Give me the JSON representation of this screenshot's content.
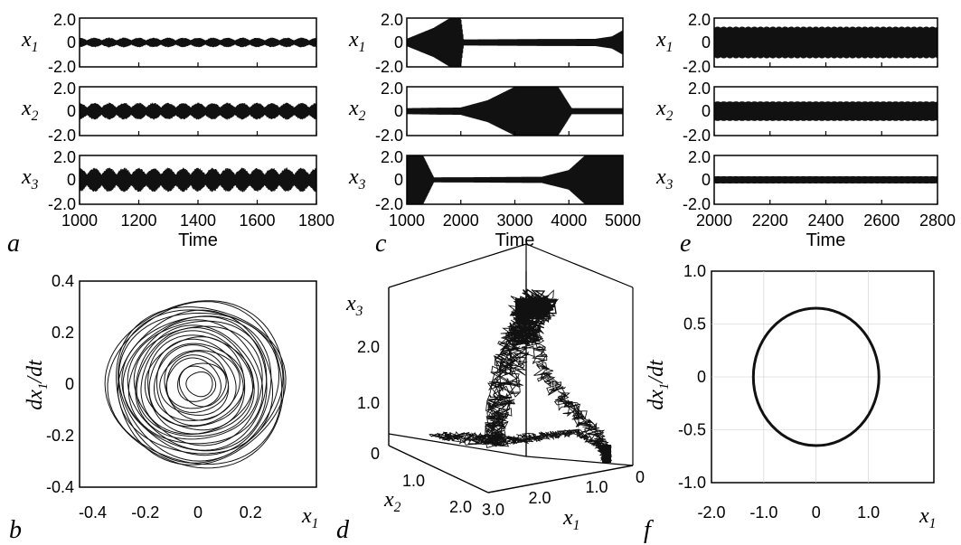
{
  "colors": {
    "ink": "#111111",
    "background": "#ffffff"
  },
  "panels": [
    {
      "letter": "a",
      "type": "line",
      "xlabel": "Time",
      "xticks": [
        "1000",
        "1200",
        "1400",
        "1600",
        "1800"
      ],
      "xlim": [
        1000,
        1800
      ],
      "yticks": [
        "2.0",
        "0",
        "-2.0"
      ],
      "ylim": [
        -2.0,
        2.0
      ],
      "series": [
        {
          "var": "x",
          "sub": "1",
          "pattern": "beating",
          "amplitude": 0.4,
          "beat_period": 50
        },
        {
          "var": "x",
          "sub": "2",
          "pattern": "beating",
          "amplitude": 0.7,
          "beat_period": 50
        },
        {
          "var": "x",
          "sub": "3",
          "pattern": "beating",
          "amplitude": 1.0,
          "beat_period": 50
        }
      ]
    },
    {
      "letter": "c",
      "type": "line",
      "xlabel": "Time",
      "xticks": [
        "1000",
        "2000",
        "3000",
        "4000",
        "5000"
      ],
      "xlim": [
        1000,
        5000
      ],
      "yticks": [
        "2.0",
        "0",
        "-2.0"
      ],
      "ylim": [
        -2.0,
        2.0
      ],
      "series": [
        {
          "var": "x",
          "sub": "1",
          "pattern": "bursting",
          "envelope": [
            [
              1000,
              0.3
            ],
            [
              1500,
              1.2
            ],
            [
              1800,
              2.0
            ],
            [
              2000,
              2.0
            ],
            [
              2050,
              0.25
            ],
            [
              4500,
              0.3
            ],
            [
              4800,
              0.5
            ],
            [
              5000,
              1.0
            ]
          ]
        },
        {
          "var": "x",
          "sub": "2",
          "pattern": "bursting",
          "envelope": [
            [
              1000,
              0.25
            ],
            [
              2000,
              0.3
            ],
            [
              2500,
              0.9
            ],
            [
              3000,
              2.0
            ],
            [
              3800,
              2.0
            ],
            [
              4050,
              0.25
            ],
            [
              5000,
              0.25
            ]
          ]
        },
        {
          "var": "x",
          "sub": "3",
          "pattern": "bursting",
          "envelope": [
            [
              1000,
              2.0
            ],
            [
              1300,
              2.0
            ],
            [
              1500,
              0.2
            ],
            [
              3500,
              0.25
            ],
            [
              4000,
              0.8
            ],
            [
              4300,
              2.0
            ],
            [
              5000,
              2.0
            ]
          ]
        }
      ]
    },
    {
      "letter": "e",
      "type": "line",
      "xlabel": "Time",
      "xticks": [
        "2000",
        "2200",
        "2400",
        "2600",
        "2800"
      ],
      "xlim": [
        2000,
        2800
      ],
      "yticks": [
        "2.0",
        "0",
        "-2.0"
      ],
      "ylim": [
        -2.0,
        2.0
      ],
      "series": [
        {
          "var": "x",
          "sub": "1",
          "pattern": "periodic",
          "amplitude": 1.3
        },
        {
          "var": "x",
          "sub": "2",
          "pattern": "periodic",
          "amplitude": 0.8
        },
        {
          "var": "x",
          "sub": "3",
          "pattern": "periodic",
          "amplitude": 0.3
        }
      ]
    },
    {
      "letter": "b",
      "type": "scatter",
      "xlabel_var": "x",
      "xlabel_sub": "1",
      "ylabel_main": "dx",
      "ylabel_sub": "1",
      "ylabel_tail": "/dt",
      "xlim": [
        -0.45,
        0.45
      ],
      "ylim": [
        -0.4,
        0.4
      ],
      "xticks": [
        {
          "v": -0.4,
          "label": "-0.4"
        },
        {
          "v": -0.2,
          "label": "-0.2"
        },
        {
          "v": 0,
          "label": "0"
        },
        {
          "v": 0.2,
          "label": "0.2"
        }
      ],
      "yticks": [
        {
          "v": 0.4,
          "label": "0.4"
        },
        {
          "v": 0.2,
          "label": "0.2"
        },
        {
          "v": 0,
          "label": "0"
        },
        {
          "v": -0.2,
          "label": "-0.2"
        },
        {
          "v": -0.4,
          "label": "-0.4"
        }
      ],
      "curve": "quasi-periodic rings",
      "r_min": 0.05,
      "r_max": 0.34
    },
    {
      "letter": "d",
      "type": "3d-line",
      "zlabel_var": "x",
      "zlabel_sub": "3",
      "ylabel_var": "x",
      "ylabel_sub": "2",
      "xlabel_var": "x",
      "xlabel_sub": "1",
      "zticks": [
        "2.0",
        "1.0",
        "0"
      ],
      "x2ticks": [
        "1.0",
        "2.0"
      ],
      "x1ticks": [
        "3.0",
        "2.0",
        "1.0",
        "0"
      ],
      "curve": "chaotic attractor"
    },
    {
      "letter": "f",
      "type": "scatter",
      "xlabel_var": "x",
      "xlabel_sub": "1",
      "ylabel_main": "dx",
      "ylabel_sub": "1",
      "ylabel_tail": "/dt",
      "xlim": [
        -2.0,
        2.0
      ],
      "ylim": [
        -1.0,
        1.0
      ],
      "xticks": [
        {
          "v": -2.0,
          "label": "-2.0"
        },
        {
          "v": -1.0,
          "label": "-1.0"
        },
        {
          "v": 0,
          "label": "0"
        },
        {
          "v": 1.0,
          "label": "1.0"
        }
      ],
      "yticks": [
        {
          "v": 1.0,
          "label": "1.0"
        },
        {
          "v": 0.5,
          "label": "0.5"
        },
        {
          "v": 0,
          "label": "0"
        },
        {
          "v": -0.5,
          "label": "-0.5"
        },
        {
          "v": -1.0,
          "label": "-1.0"
        }
      ],
      "curve": "limit cycle",
      "rx": 1.2,
      "ry": 0.65
    }
  ],
  "chart_data": [
    {
      "type": "line",
      "panel": "a",
      "xlabel": "Time",
      "xlim": [
        1000,
        1800
      ],
      "ylim": [
        -2.0,
        2.0
      ],
      "series": [
        {
          "name": "x1",
          "amplitude": 0.4
        },
        {
          "name": "x2",
          "amplitude": 0.7
        },
        {
          "name": "x3",
          "amplitude": 1.0
        }
      ]
    },
    {
      "type": "line",
      "panel": "c",
      "xlabel": "Time",
      "xlim": [
        1000,
        5000
      ],
      "ylim": [
        -2.0,
        2.0
      ],
      "series": [
        {
          "name": "x1",
          "burst_peak_time": 2000
        },
        {
          "name": "x2",
          "burst_peak_time": 3500
        },
        {
          "name": "x3",
          "burst_peak_time": 4700
        }
      ]
    },
    {
      "type": "line",
      "panel": "e",
      "xlabel": "Time",
      "xlim": [
        2000,
        2800
      ],
      "ylim": [
        -2.0,
        2.0
      ],
      "series": [
        {
          "name": "x1",
          "amplitude": 1.3
        },
        {
          "name": "x2",
          "amplitude": 0.8
        },
        {
          "name": "x3",
          "amplitude": 0.3
        }
      ]
    },
    {
      "type": "scatter",
      "panel": "b",
      "xlim": [
        -0.45,
        0.45
      ],
      "ylim": [
        -0.4,
        0.4
      ]
    },
    {
      "type": "scatter",
      "panel": "d"
    },
    {
      "type": "scatter",
      "panel": "f",
      "xlim": [
        -2.0,
        2.0
      ],
      "ylim": [
        -1.0,
        1.0
      ]
    }
  ]
}
